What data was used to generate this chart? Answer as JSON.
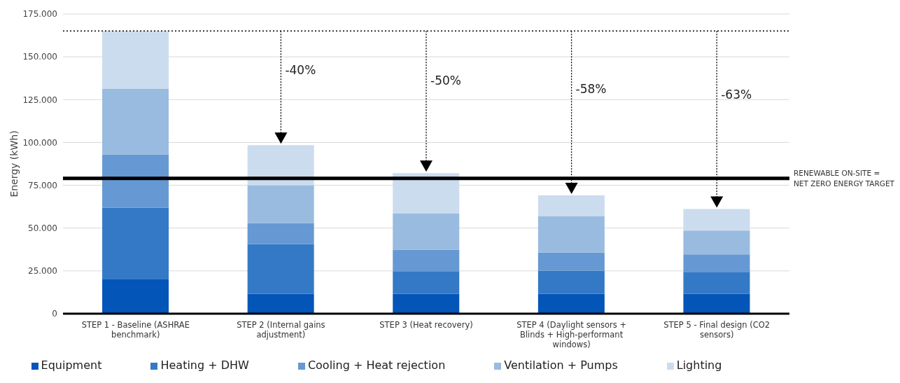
{
  "chart_data": {
    "type": "bar",
    "stacked": true,
    "ylabel": "Energy  (kWh)",
    "categories": [
      "STEP 1 - Baseline (ASHRAE benchmark)",
      "STEP 2 (Internal gains adjustment)",
      "STEP 3 (Heat recovery)",
      "STEP 4 (Daylight sensors + Blinds + High-performant windows)",
      "STEP 5 - Final design (CO2 sensors)"
    ],
    "series": [
      {
        "name": "Equipment",
        "color": "#0455b8",
        "values": [
          20300,
          11700,
          11700,
          11500,
          11500
        ]
      },
      {
        "name": "Heating + DHW",
        "color": "#3479c6",
        "values": [
          41600,
          28900,
          12800,
          13500,
          12900
        ]
      },
      {
        "name": "Cooling + Heat rejection",
        "color": "#6699d3",
        "values": [
          31100,
          12300,
          12900,
          10700,
          10300
        ]
      },
      {
        "name": "Ventilation + Pumps",
        "color": "#99bbe0",
        "values": [
          38200,
          22100,
          21300,
          21300,
          13900
        ]
      },
      {
        "name": "Lighting",
        "color": "#ccdcef",
        "values": [
          33900,
          23400,
          23400,
          12100,
          12500
        ]
      }
    ],
    "ylim": [
      0,
      175000
    ],
    "yticks": [
      {
        "value": 0,
        "label": "0"
      },
      {
        "value": 25000,
        "label": "25.000"
      },
      {
        "value": 50000,
        "label": "50.000"
      },
      {
        "value": 75000,
        "label": "75.000"
      },
      {
        "value": 100000,
        "label": "100.000"
      },
      {
        "value": 125000,
        "label": "125.000"
      },
      {
        "value": 150000,
        "label": "150.000"
      },
      {
        "value": 175000,
        "label": "175.000"
      }
    ],
    "grid": "y",
    "legend": "bottom",
    "ref_lines": [
      {
        "axis": "y",
        "value": 79000,
        "label": "RENEWABLE ON-SITE =\nNET ZERO ENERGY TARGET",
        "color": "#000000",
        "line_style": "solid"
      },
      {
        "axis": "y",
        "value": 165100,
        "label": null,
        "color": "#000000",
        "line_style": "dotted"
      }
    ],
    "annotations": [
      "-40%",
      "-50%",
      "-58%",
      "-63%"
    ]
  }
}
